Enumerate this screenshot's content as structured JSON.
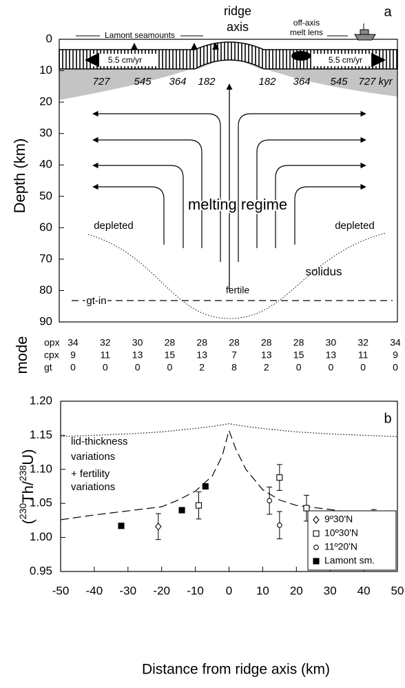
{
  "chart_data": [
    {
      "type": "diagram",
      "panel_label": "a",
      "ylabel": "Depth (km)",
      "ylim": [
        0,
        90
      ],
      "yticks": [
        0,
        10,
        20,
        30,
        40,
        50,
        60,
        70,
        80,
        90
      ],
      "labels": {
        "ridge_axis": [
          "ridge",
          "axis"
        ],
        "seamounts": "Lamont seamounts",
        "melt_lens": [
          "off-axis",
          "melt lens"
        ],
        "spreading_rate": [
          "5.5 cm/yr",
          "5.5 cm/yr"
        ],
        "ages": [
          "727",
          "545",
          "364",
          "182",
          "182",
          "364",
          "545",
          "727 kyr"
        ],
        "melting": "melting regime",
        "depleted": [
          "depleted",
          "depleted"
        ],
        "solidus": "solidus",
        "fertile": "fertile",
        "gt_in": "gt-in"
      },
      "mode": {
        "title": "mode",
        "rows": [
          {
            "label": "opx",
            "values": [
              34,
              32,
              30,
              28,
              28,
              28,
              28,
              28,
              30,
              32,
              34
            ]
          },
          {
            "label": "cpx",
            "values": [
              9,
              11,
              13,
              15,
              13,
              7,
              13,
              15,
              13,
              11,
              9
            ]
          },
          {
            "label": "gt",
            "values": [
              0,
              0,
              0,
              0,
              2,
              8,
              2,
              0,
              0,
              0,
              0
            ]
          }
        ]
      }
    },
    {
      "type": "line",
      "panel_label": "b",
      "xlabel": "Distance from ridge axis (km)",
      "ylabel_parts": [
        "(",
        "230",
        "Th/",
        "238",
        "U)"
      ],
      "xlim": [
        -50,
        50
      ],
      "xticks": [
        -50,
        -40,
        -30,
        -20,
        -10,
        0,
        10,
        20,
        30,
        40,
        50
      ],
      "ylim": [
        0.95,
        1.2
      ],
      "yticks": [
        0.95,
        {
          "value": 1,
          "label": "1.00"
        },
        1.05,
        {
          "value": 1.1,
          "label": "1.10"
        },
        1.15,
        {
          "value": 1.2,
          "label": "1.20"
        }
      ],
      "annotations": [
        [
          "lid-thickness",
          "variations"
        ],
        [
          "+ fertility",
          "variations"
        ]
      ],
      "legend": "lower right",
      "series": [
        {
          "style": "dotted",
          "color": "#000000",
          "x": [
            -50,
            -40,
            -30,
            -20,
            -10,
            -5,
            0,
            5,
            10,
            20,
            30,
            40,
            50
          ],
          "values": [
            1.148,
            1.15,
            1.152,
            1.155,
            1.16,
            1.163,
            1.167,
            1.163,
            1.16,
            1.155,
            1.152,
            1.15,
            1.148
          ]
        },
        {
          "style": "dashed",
          "color": "#000000",
          "x": [
            -50,
            -40,
            -30,
            -20,
            -15,
            -10,
            -5,
            -2,
            0,
            2,
            5,
            10,
            15,
            20,
            30,
            40,
            50
          ],
          "values": [
            1.026,
            1.033,
            1.039,
            1.045,
            1.055,
            1.068,
            1.09,
            1.12,
            1.157,
            1.13,
            1.1,
            1.07,
            1.055,
            1.047,
            1.041,
            1.035,
            1.027
          ]
        },
        {
          "name": "9º30'N",
          "marker": "diamond",
          "color": "#000000",
          "x": [
            -21
          ],
          "values": [
            1.016
          ],
          "errors": [
            0.019
          ]
        },
        {
          "name": "10º30'N",
          "marker": "square",
          "color": "#000000",
          "x": [
            -9,
            15,
            23
          ],
          "values": [
            1.047,
            1.088,
            1.043
          ],
          "errors": [
            0.02,
            0.019,
            0.019
          ]
        },
        {
          "name": "11º20'N",
          "marker": "circle",
          "color": "#000000",
          "x": [
            12,
            15,
            43
          ],
          "values": [
            1.054,
            1.018,
            1.02
          ],
          "errors": [
            0.02,
            0.02,
            0.021
          ]
        },
        {
          "name": "Lamont sm.",
          "marker": "filled-square",
          "color": "#000000",
          "x": [
            -32,
            -14,
            -7
          ],
          "values": [
            1.017,
            1.04,
            1.075
          ]
        }
      ]
    }
  ]
}
